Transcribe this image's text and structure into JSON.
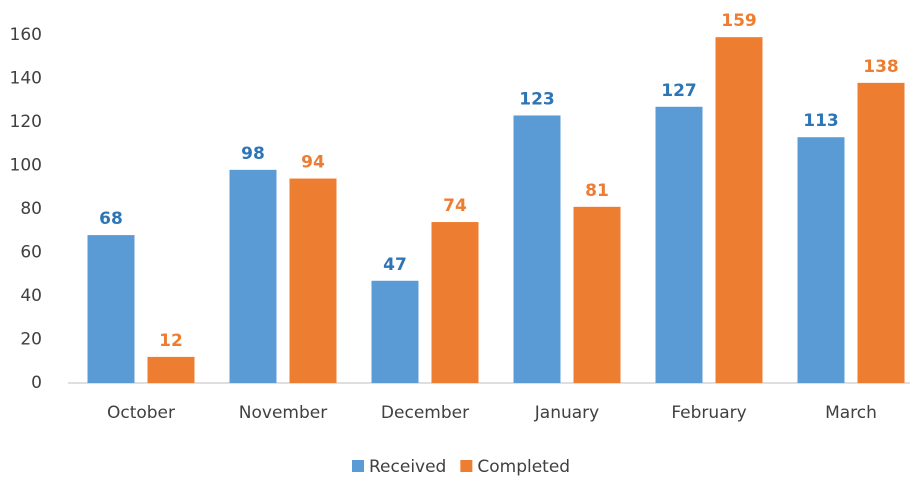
{
  "chart_data": {
    "type": "bar",
    "categories": [
      "October",
      "November",
      "December",
      "January",
      "February",
      "March"
    ],
    "series": [
      {
        "name": "Received",
        "color": "#5b9bd5",
        "label_color": "#2e75b6",
        "values": [
          68,
          98,
          47,
          123,
          127,
          113
        ]
      },
      {
        "name": "Completed",
        "color": "#ed7d31",
        "label_color": "#ed7d31",
        "values": [
          12,
          94,
          74,
          81,
          159,
          138
        ]
      }
    ],
    "ylim": [
      0,
      160
    ],
    "yticks": [
      0,
      20,
      40,
      60,
      80,
      100,
      120,
      140,
      160
    ],
    "grid": false,
    "legend": "bottom"
  }
}
